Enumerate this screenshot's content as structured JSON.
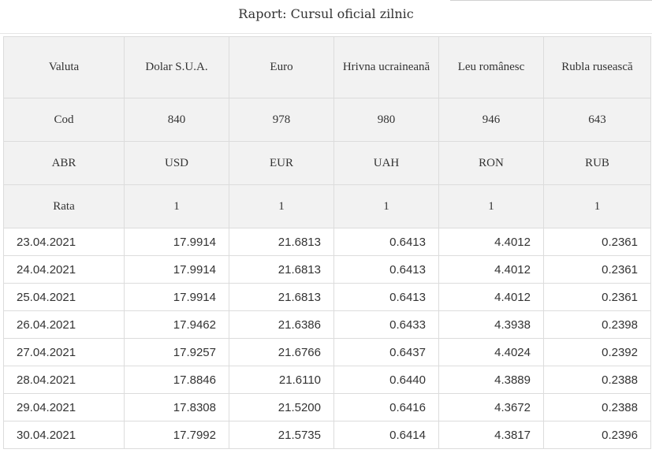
{
  "report": {
    "title": "Raport: Cursul oficial zilnic"
  },
  "header_rows": [
    {
      "label": "Valuta",
      "cells": [
        "Dolar S.U.A.",
        "Euro",
        "Hrivna ucraineană",
        "Leu românesc",
        "Rubla rusească"
      ]
    },
    {
      "label": "Cod",
      "cells": [
        "840",
        "978",
        "980",
        "946",
        "643"
      ]
    },
    {
      "label": "ABR",
      "cells": [
        "USD",
        "EUR",
        "UAH",
        "RON",
        "RUB"
      ]
    },
    {
      "label": "Rata",
      "cells": [
        "1",
        "1",
        "1",
        "1",
        "1"
      ]
    }
  ],
  "rows": [
    {
      "date": "23.04.2021",
      "values": [
        "17.9914",
        "21.6813",
        "0.6413",
        "4.4012",
        "0.2361"
      ]
    },
    {
      "date": "24.04.2021",
      "values": [
        "17.9914",
        "21.6813",
        "0.6413",
        "4.4012",
        "0.2361"
      ]
    },
    {
      "date": "25.04.2021",
      "values": [
        "17.9914",
        "21.6813",
        "0.6413",
        "4.4012",
        "0.2361"
      ]
    },
    {
      "date": "26.04.2021",
      "values": [
        "17.9462",
        "21.6386",
        "0.6433",
        "4.3938",
        "0.2398"
      ]
    },
    {
      "date": "27.04.2021",
      "values": [
        "17.9257",
        "21.6766",
        "0.6437",
        "4.4024",
        "0.2392"
      ]
    },
    {
      "date": "28.04.2021",
      "values": [
        "17.8846",
        "21.6110",
        "0.6440",
        "4.3889",
        "0.2388"
      ]
    },
    {
      "date": "29.04.2021",
      "values": [
        "17.8308",
        "21.5200",
        "0.6416",
        "4.3672",
        "0.2388"
      ]
    },
    {
      "date": "30.04.2021",
      "values": [
        "17.7992",
        "21.5735",
        "0.6414",
        "4.3817",
        "0.2396"
      ]
    }
  ]
}
